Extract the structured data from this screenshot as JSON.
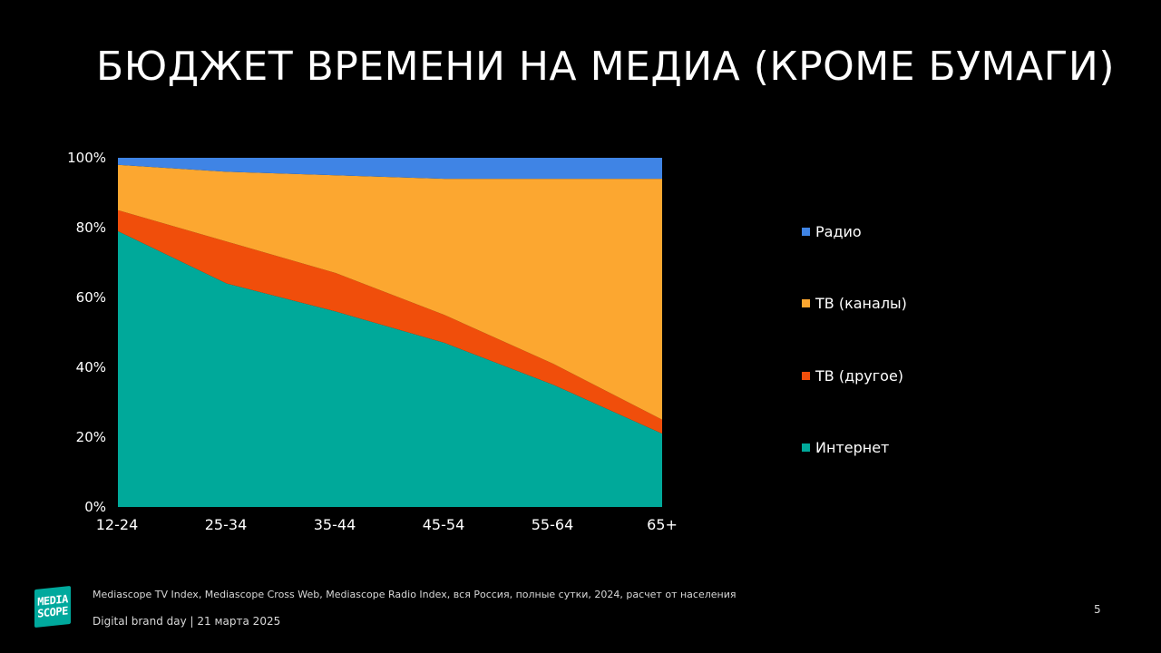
{
  "slide": {
    "title": "БЮДЖЕТ ВРЕМЕНИ НА МЕДИА (КРОМЕ БУМАГИ)",
    "page_number": "5"
  },
  "footer": {
    "source": "Mediascope TV Index, Mediascope Cross  Web, Mediascope Radio Index, вся Россия, полные сутки, 2024, расчет от населения",
    "event": "Digital brand day |  21 марта 2025"
  },
  "logo": {
    "line1": "MEDIA",
    "line2": "SCOPE",
    "color": "#00a99d"
  },
  "chart_data": {
    "type": "area",
    "stacked": true,
    "normalized": true,
    "categories": [
      "12-24",
      "25-34",
      "35-44",
      "45-54",
      "55-64",
      "65+"
    ],
    "y_ticks": [
      "0%",
      "20%",
      "40%",
      "60%",
      "80%",
      "100%"
    ],
    "ylim": [
      0,
      100
    ],
    "grid": false,
    "legend_position": "right",
    "series": [
      {
        "name": "Интернет",
        "color": "#00a99a",
        "values": [
          79,
          64,
          56,
          47,
          35,
          21
        ]
      },
      {
        "name": "ТВ (другое)",
        "color": "#f04e0b",
        "values": [
          6,
          12,
          11,
          8,
          6,
          4
        ]
      },
      {
        "name": "ТВ (каналы)",
        "color": "#fca730",
        "values": [
          13,
          20,
          28,
          39,
          53,
          69
        ]
      },
      {
        "name": "Радио",
        "color": "#3f84e5",
        "values": [
          2,
          4,
          5,
          6,
          6,
          6
        ]
      }
    ],
    "legend_order": [
      "Радио",
      "ТВ (каналы)",
      "ТВ (другое)",
      "Интернет"
    ]
  }
}
